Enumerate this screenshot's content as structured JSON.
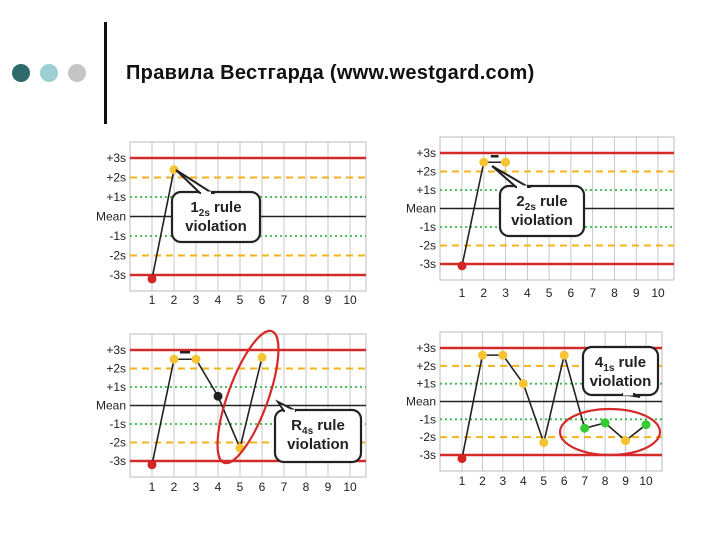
{
  "header": {
    "title": "Правила Вестгарда (www.westgard.com)",
    "dot_colors": [
      "#2f6a6a",
      "#9ccfd3",
      "#c4c6c4"
    ]
  },
  "colors": {
    "sd3_line": "#d42a2a",
    "sd2_line": "#f2b31c",
    "sd1_line": "#3ab64a",
    "mean_line": "#222222",
    "point_red": "#d42424",
    "point_yellow": "#f6c433",
    "point_green": "#33cc33",
    "point_black": "#222222",
    "grid": "#bbbbbb",
    "ellipse": "#d42a2a"
  },
  "chart_data": [
    {
      "type": "line",
      "title": "",
      "y_labels": [
        "+3s",
        "+2s",
        "+1s",
        "Mean",
        "-1s",
        "-2s",
        "-3s"
      ],
      "x": [
        1,
        2
      ],
      "x_tick_labels": [
        "1",
        "2",
        "3",
        "4",
        "5",
        "6",
        "7",
        "8",
        "9",
        "10"
      ],
      "values_sd": [
        -3.2,
        2.4
      ],
      "point_colors": [
        "red",
        "yellow"
      ],
      "annotation": {
        "main": "1",
        "sub": "2s",
        "rest": " rule",
        "line2": "violation"
      },
      "grid": true
    },
    {
      "type": "line",
      "title": "",
      "y_labels": [
        "+3s",
        "+2s",
        "+1s",
        "Mean",
        "-1s",
        "-2s",
        "-3s"
      ],
      "x": [
        1,
        2,
        3
      ],
      "x_tick_labels": [
        "1",
        "2",
        "3",
        "4",
        "5",
        "6",
        "7",
        "8",
        "9",
        "10"
      ],
      "values_sd": [
        -3.1,
        2.5,
        2.5
      ],
      "point_colors": [
        "red",
        "yellow",
        "yellow"
      ],
      "annotation": {
        "main": "2",
        "sub": "2s",
        "rest": " rule",
        "line2": "violation"
      },
      "grid": true
    },
    {
      "type": "line",
      "title": "",
      "y_labels": [
        "+3s",
        "+2s",
        "+1s",
        "Mean",
        "-1s",
        "-2s",
        "-3s"
      ],
      "x": [
        1,
        2,
        3,
        4,
        5,
        6
      ],
      "x_tick_labels": [
        "1",
        "2",
        "3",
        "4",
        "5",
        "6",
        "7",
        "8",
        "9",
        "10"
      ],
      "values_sd": [
        -3.2,
        2.5,
        2.5,
        0.5,
        -2.3,
        2.6
      ],
      "point_colors": [
        "red",
        "yellow",
        "yellow",
        "black",
        "yellow",
        "yellow"
      ],
      "annotation": {
        "main": "R",
        "sub": "4s",
        "rest": " rule",
        "line2": "violation"
      },
      "grid": true
    },
    {
      "type": "line",
      "title": "",
      "y_labels": [
        "+3s",
        "+2s",
        "+1s",
        "Mean",
        "-1s",
        "-2s",
        "-3s"
      ],
      "x": [
        1,
        2,
        3,
        4,
        5,
        6,
        7,
        8,
        9,
        10
      ],
      "x_tick_labels": [
        "1",
        "2",
        "3",
        "4",
        "5",
        "6",
        "7",
        "8",
        "9",
        "10"
      ],
      "values_sd": [
        -3.2,
        2.6,
        2.6,
        1.0,
        -2.3,
        2.6,
        -1.5,
        -1.2,
        -2.2,
        -1.3
      ],
      "point_colors": [
        "red",
        "yellow",
        "yellow",
        "yellow",
        "yellow",
        "yellow",
        "green",
        "green",
        "yellow",
        "green"
      ],
      "annotation": {
        "main": "4",
        "sub": "1s",
        "rest": " rule",
        "line2": "violation"
      },
      "grid": true
    }
  ]
}
